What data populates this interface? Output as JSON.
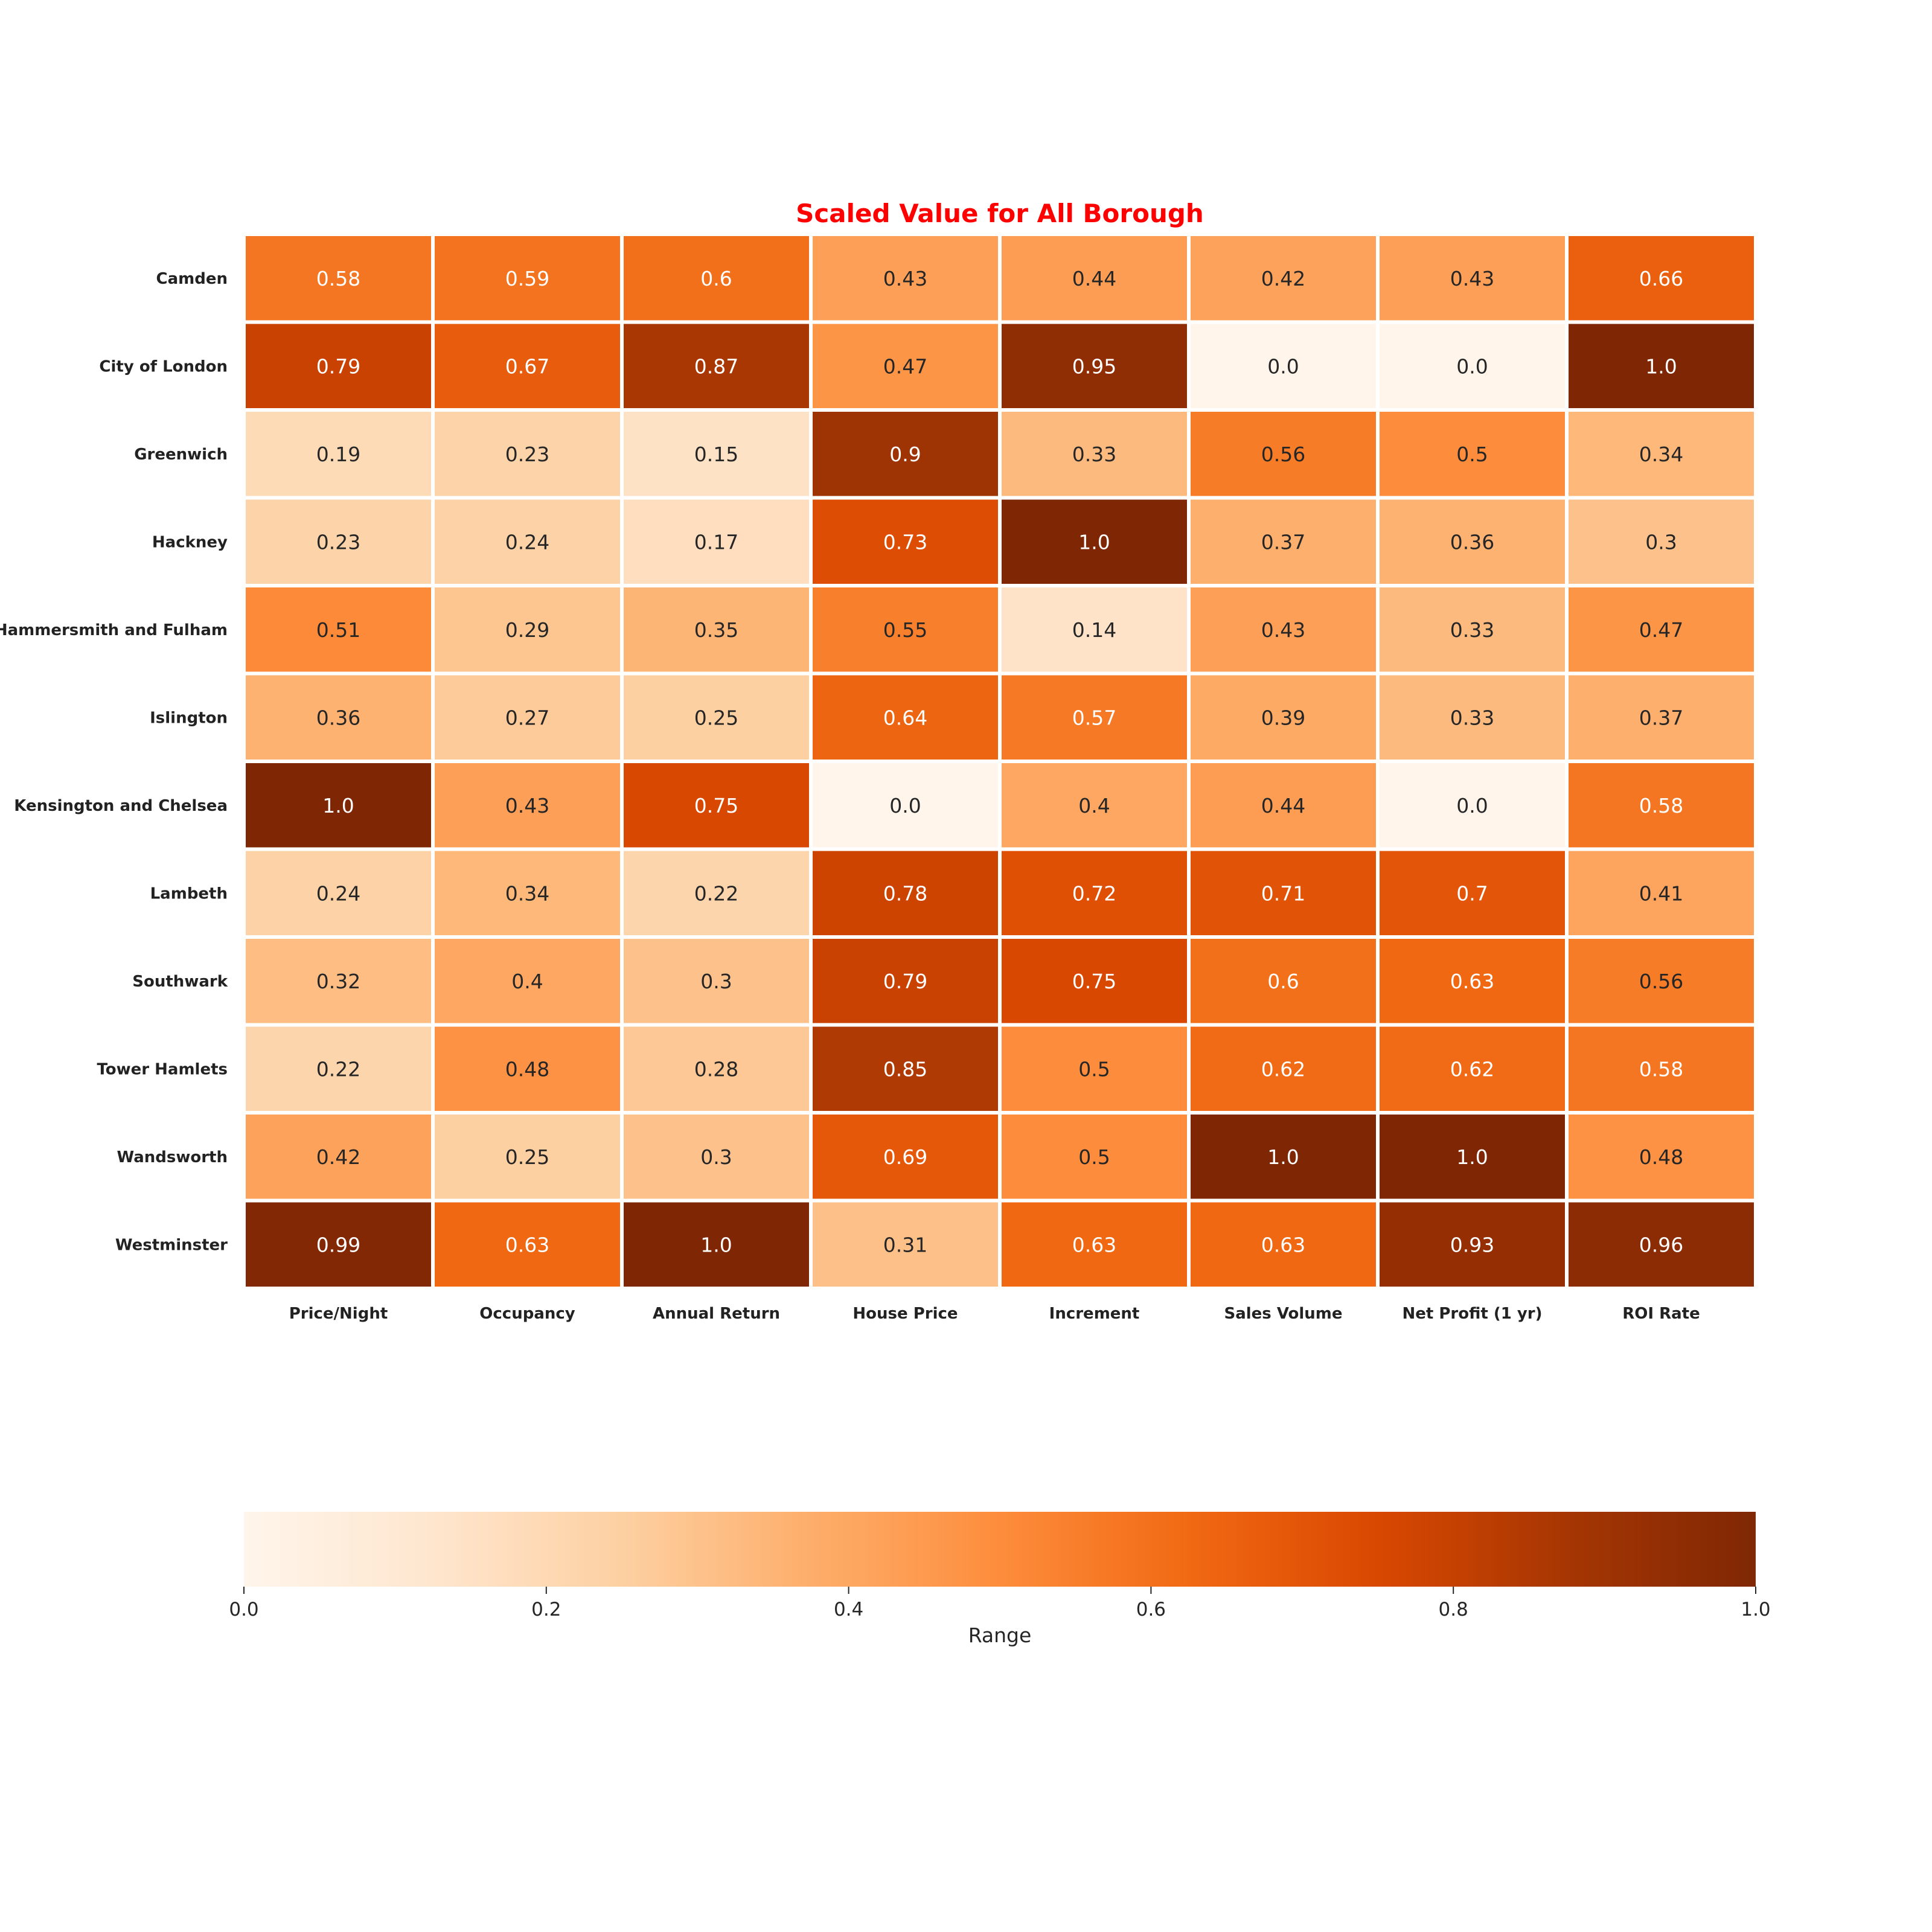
{
  "chart_data": {
    "type": "heatmap",
    "title": "Scaled Value for All Borough",
    "rows": [
      "Camden",
      "City of London",
      "Greenwich",
      "Hackney",
      "Hammersmith and Fulham",
      "Islington",
      "Kensington and Chelsea",
      "Lambeth",
      "Southwark",
      "Tower Hamlets",
      "Wandsworth",
      "Westminster"
    ],
    "columns": [
      "Price/Night",
      "Occupancy",
      "Annual Return",
      "House Price",
      "Increment",
      "Sales Volume",
      "Net Profit (1 yr)",
      "ROI Rate"
    ],
    "values": [
      [
        0.58,
        0.59,
        0.6,
        0.43,
        0.44,
        0.42,
        0.43,
        0.66
      ],
      [
        0.79,
        0.67,
        0.87,
        0.47,
        0.95,
        0.0,
        0.0,
        1.0
      ],
      [
        0.19,
        0.23,
        0.15,
        0.9,
        0.33,
        0.56,
        0.5,
        0.34
      ],
      [
        0.23,
        0.24,
        0.17,
        0.73,
        1.0,
        0.37,
        0.36,
        0.3
      ],
      [
        0.51,
        0.29,
        0.35,
        0.55,
        0.14,
        0.43,
        0.33,
        0.47
      ],
      [
        0.36,
        0.27,
        0.25,
        0.64,
        0.57,
        0.39,
        0.33,
        0.37
      ],
      [
        1.0,
        0.43,
        0.75,
        0.0,
        0.4,
        0.44,
        0.0,
        0.58
      ],
      [
        0.24,
        0.34,
        0.22,
        0.78,
        0.72,
        0.71,
        0.7,
        0.41
      ],
      [
        0.32,
        0.4,
        0.3,
        0.79,
        0.75,
        0.6,
        0.63,
        0.56
      ],
      [
        0.22,
        0.48,
        0.28,
        0.85,
        0.5,
        0.62,
        0.62,
        0.58
      ],
      [
        0.42,
        0.25,
        0.3,
        0.69,
        0.5,
        1.0,
        1.0,
        0.48
      ],
      [
        0.99,
        0.63,
        1.0,
        0.31,
        0.63,
        0.63,
        0.93,
        0.96
      ]
    ],
    "value_labels": [
      [
        "0.58",
        "0.59",
        "0.6",
        "0.43",
        "0.44",
        "0.42",
        "0.43",
        "0.66"
      ],
      [
        "0.79",
        "0.67",
        "0.87",
        "0.47",
        "0.95",
        "0.0",
        "0.0",
        "1.0"
      ],
      [
        "0.19",
        "0.23",
        "0.15",
        "0.9",
        "0.33",
        "0.56",
        "0.5",
        "0.34"
      ],
      [
        "0.23",
        "0.24",
        "0.17",
        "0.73",
        "1.0",
        "0.37",
        "0.36",
        "0.3"
      ],
      [
        "0.51",
        "0.29",
        "0.35",
        "0.55",
        "0.14",
        "0.43",
        "0.33",
        "0.47"
      ],
      [
        "0.36",
        "0.27",
        "0.25",
        "0.64",
        "0.57",
        "0.39",
        "0.33",
        "0.37"
      ],
      [
        "1.0",
        "0.43",
        "0.75",
        "0.0",
        "0.4",
        "0.44",
        "0.0",
        "0.58"
      ],
      [
        "0.24",
        "0.34",
        "0.22",
        "0.78",
        "0.72",
        "0.71",
        "0.7",
        "0.41"
      ],
      [
        "0.32",
        "0.4",
        "0.3",
        "0.79",
        "0.75",
        "0.6",
        "0.63",
        "0.56"
      ],
      [
        "0.22",
        "0.48",
        "0.28",
        "0.85",
        "0.5",
        "0.62",
        "0.62",
        "0.58"
      ],
      [
        "0.42",
        "0.25",
        "0.3",
        "0.69",
        "0.5",
        "1.0",
        "1.0",
        "0.48"
      ],
      [
        "0.99",
        "0.63",
        "1.0",
        "0.31",
        "0.63",
        "0.63",
        "0.93",
        "0.96"
      ]
    ],
    "colorbar": {
      "label": "Range",
      "ticks": [
        0.0,
        0.2,
        0.4,
        0.6,
        0.8,
        1.0
      ],
      "tick_labels": [
        "0.0",
        "0.2",
        "0.4",
        "0.6",
        "0.8",
        "1.0"
      ],
      "range": [
        0,
        1
      ],
      "orientation": "horizontal",
      "placement": "bottom"
    },
    "colormap": "Oranges",
    "colormap_stops": [
      "#fff5eb",
      "#fee6ce",
      "#fdd0a2",
      "#fdae6b",
      "#fd8d3c",
      "#f16913",
      "#d94801",
      "#a63603",
      "#7f2704"
    ],
    "title_color": "#ff0000",
    "grid_color": "#ffffff"
  }
}
